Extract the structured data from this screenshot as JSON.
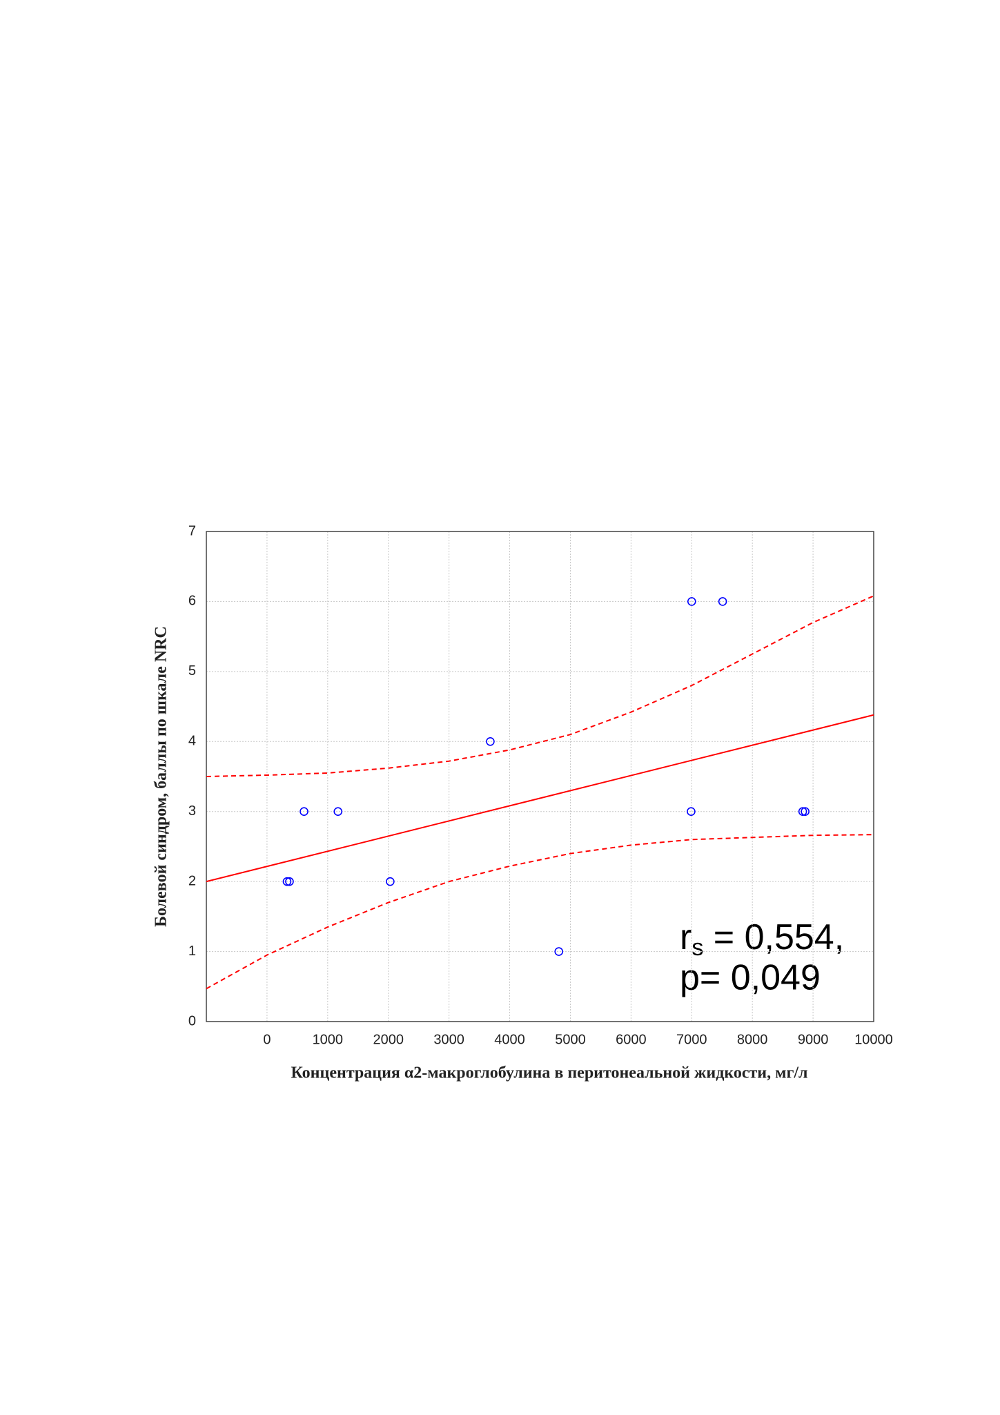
{
  "chart_data": {
    "type": "scatter",
    "x_label": "Концентрация  α2-макроглобулина в перитонеальной жидкости, мг/л",
    "y_label": "Болевой синдром, баллы по шкале NRC",
    "xlim": [
      -1000,
      10000
    ],
    "xticks": [
      0,
      1000,
      2000,
      3000,
      4000,
      5000,
      6000,
      7000,
      8000,
      9000,
      10000
    ],
    "ylim": [
      0,
      7
    ],
    "yticks": [
      0,
      1,
      2,
      3,
      4,
      5,
      6,
      7
    ],
    "grid": true,
    "points": {
      "color": "#0000ff",
      "x": [
        330,
        370,
        610,
        1170,
        2030,
        3680,
        4810,
        7000,
        7510,
        6990,
        8830,
        8870
      ],
      "y": [
        2,
        2,
        3,
        3,
        2,
        4,
        1,
        6,
        6,
        3,
        3,
        3
      ]
    },
    "fit": {
      "color": "#ff0000",
      "x": [
        -1000,
        10000
      ],
      "y": [
        2.0,
        4.38
      ]
    },
    "confidence_band": {
      "color": "#ff0000",
      "x": [
        -1000,
        0,
        1000,
        2000,
        3000,
        4000,
        5000,
        6000,
        7000,
        8000,
        9000,
        10000
      ],
      "upper": [
        3.5,
        3.52,
        3.55,
        3.62,
        3.72,
        3.88,
        4.1,
        4.42,
        4.8,
        5.25,
        5.7,
        6.08
      ],
      "lower": [
        0.47,
        0.95,
        1.35,
        1.7,
        2.0,
        2.22,
        2.4,
        2.52,
        2.6,
        2.63,
        2.66,
        2.67
      ]
    },
    "annotation": {
      "r_symbol": "r",
      "r_subscript": "s",
      "r_value": " = 0,554,",
      "p_line": "p= 0,049"
    }
  }
}
